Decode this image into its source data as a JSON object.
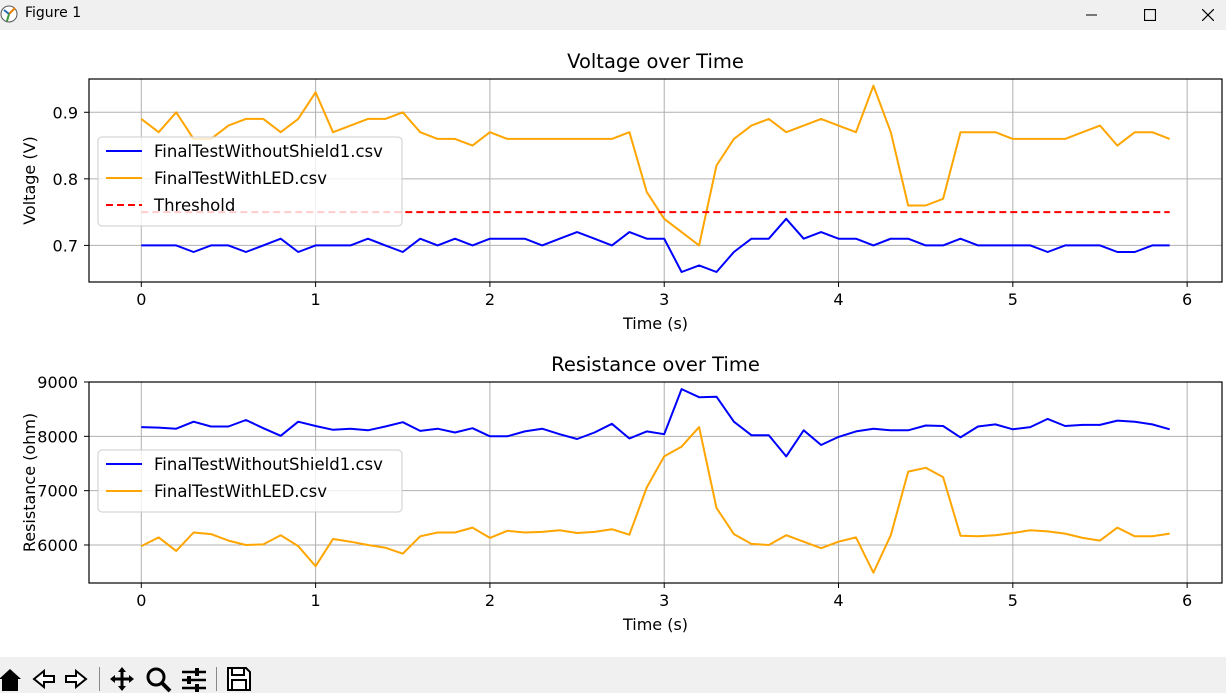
{
  "window": {
    "title": "Figure 1"
  },
  "toolbar": {
    "buttons": [
      {
        "icon": "home-icon"
      },
      {
        "icon": "back-icon"
      },
      {
        "icon": "forward-icon"
      },
      {
        "icon": "pan-icon"
      },
      {
        "icon": "zoom-icon"
      },
      {
        "icon": "configure-subplots-icon"
      },
      {
        "icon": "save-icon"
      }
    ]
  },
  "colors": {
    "series_blue": "#0000ff",
    "series_orange": "#ffa500",
    "threshold": "#ff0000",
    "grid": "#b0b0b0"
  },
  "chart_data": [
    {
      "type": "line",
      "title": "Voltage over Time",
      "xlabel": "Time (s)",
      "ylabel": "Voltage (V)",
      "xlim": [
        -0.3,
        6.2
      ],
      "ylim": [
        0.645,
        0.95
      ],
      "xticks": [
        0,
        1,
        2,
        3,
        4,
        5,
        6
      ],
      "yticks": [
        0.7,
        0.8,
        0.9
      ],
      "ytick_labels": [
        "0.7",
        "0.8",
        "0.9"
      ],
      "grid": true,
      "legend_position": "center-left",
      "x": [
        0,
        0.1,
        0.2,
        0.3,
        0.4,
        0.5,
        0.6,
        0.7,
        0.8,
        0.9,
        1,
        1.1,
        1.2,
        1.3,
        1.4,
        1.5,
        1.6,
        1.7,
        1.8,
        1.9,
        2,
        2.1,
        2.2,
        2.3,
        2.4,
        2.5,
        2.6,
        2.7,
        2.8,
        2.9,
        3,
        3.1,
        3.2,
        3.3,
        3.4,
        3.5,
        3.6,
        3.7,
        3.8,
        3.9,
        4,
        4.1,
        4.2,
        4.3,
        4.4,
        4.5,
        4.6,
        4.7,
        4.8,
        4.9,
        5,
        5.1,
        5.2,
        5.3,
        5.4,
        5.5,
        5.6,
        5.7,
        5.8,
        5.9
      ],
      "series": [
        {
          "name": "FinalTestWithoutShield1.csv",
          "color": "#0000ff",
          "style": "solid",
          "values": [
            0.7,
            0.7,
            0.7,
            0.69,
            0.7,
            0.7,
            0.69,
            0.7,
            0.71,
            0.69,
            0.7,
            0.7,
            0.7,
            0.71,
            0.7,
            0.69,
            0.71,
            0.7,
            0.71,
            0.7,
            0.71,
            0.71,
            0.71,
            0.7,
            0.71,
            0.72,
            0.71,
            0.7,
            0.72,
            0.71,
            0.71,
            0.66,
            0.67,
            0.66,
            0.69,
            0.71,
            0.71,
            0.74,
            0.71,
            0.72,
            0.71,
            0.71,
            0.7,
            0.71,
            0.71,
            0.7,
            0.7,
            0.71,
            0.7,
            0.7,
            0.7,
            0.7,
            0.69,
            0.7,
            0.7,
            0.7,
            0.69,
            0.69,
            0.7,
            0.7
          ]
        },
        {
          "name": "FinalTestWithLED.csv",
          "color": "#ffa500",
          "style": "solid",
          "values": [
            0.89,
            0.87,
            0.9,
            0.86,
            0.86,
            0.88,
            0.89,
            0.89,
            0.87,
            0.89,
            0.93,
            0.87,
            0.88,
            0.89,
            0.89,
            0.9,
            0.87,
            0.86,
            0.86,
            0.85,
            0.87,
            0.86,
            0.86,
            0.86,
            0.86,
            0.86,
            0.86,
            0.86,
            0.87,
            0.78,
            0.74,
            0.72,
            0.7,
            0.82,
            0.86,
            0.88,
            0.89,
            0.87,
            0.88,
            0.89,
            0.88,
            0.87,
            0.94,
            0.87,
            0.76,
            0.76,
            0.77,
            0.87,
            0.87,
            0.87,
            0.86,
            0.86,
            0.86,
            0.86,
            0.87,
            0.88,
            0.85,
            0.87,
            0.87,
            0.86
          ]
        },
        {
          "name": "Threshold",
          "color": "#ff0000",
          "style": "dashed",
          "values": [
            0.75,
            0.75,
            0.75,
            0.75,
            0.75,
            0.75,
            0.75,
            0.75,
            0.75,
            0.75,
            0.75,
            0.75,
            0.75,
            0.75,
            0.75,
            0.75,
            0.75,
            0.75,
            0.75,
            0.75,
            0.75,
            0.75,
            0.75,
            0.75,
            0.75,
            0.75,
            0.75,
            0.75,
            0.75,
            0.75,
            0.75,
            0.75,
            0.75,
            0.75,
            0.75,
            0.75,
            0.75,
            0.75,
            0.75,
            0.75,
            0.75,
            0.75,
            0.75,
            0.75,
            0.75,
            0.75,
            0.75,
            0.75,
            0.75,
            0.75,
            0.75,
            0.75,
            0.75,
            0.75,
            0.75,
            0.75,
            0.75,
            0.75,
            0.75,
            0.75
          ]
        }
      ]
    },
    {
      "type": "line",
      "title": "Resistance over Time",
      "xlabel": "Time (s)",
      "ylabel": "Resistance (ohm)",
      "xlim": [
        -0.3,
        6.2
      ],
      "ylim": [
        5300,
        9000
      ],
      "xticks": [
        0,
        1,
        2,
        3,
        4,
        5,
        6
      ],
      "yticks": [
        6000,
        7000,
        8000,
        9000
      ],
      "ytick_labels": [
        "6000",
        "7000",
        "8000",
        "9000"
      ],
      "grid": true,
      "legend_position": "center-left",
      "x": [
        0,
        0.1,
        0.2,
        0.3,
        0.4,
        0.5,
        0.6,
        0.7,
        0.8,
        0.9,
        1,
        1.1,
        1.2,
        1.3,
        1.4,
        1.5,
        1.6,
        1.7,
        1.8,
        1.9,
        2,
        2.1,
        2.2,
        2.3,
        2.4,
        2.5,
        2.6,
        2.7,
        2.8,
        2.9,
        3,
        3.1,
        3.2,
        3.3,
        3.4,
        3.5,
        3.6,
        3.7,
        3.8,
        3.9,
        4,
        4.1,
        4.2,
        4.3,
        4.4,
        4.5,
        4.6,
        4.7,
        4.8,
        4.9,
        5,
        5.1,
        5.2,
        5.3,
        5.4,
        5.5,
        5.6,
        5.7,
        5.8,
        5.9
      ],
      "series": [
        {
          "name": "FinalTestWithoutShield1.csv",
          "color": "#0000ff",
          "style": "solid",
          "values": [
            8170,
            8160,
            8140,
            8270,
            8180,
            8180,
            8300,
            8150,
            8010,
            8270,
            8190,
            8120,
            8140,
            8110,
            8180,
            8260,
            8100,
            8140,
            8070,
            8150,
            8000,
            8000,
            8090,
            8140,
            8040,
            7950,
            8070,
            8230,
            7960,
            8090,
            8040,
            8870,
            8720,
            8730,
            8270,
            8020,
            8020,
            7630,
            8110,
            7840,
            7990,
            8090,
            8140,
            8110,
            8110,
            8200,
            8190,
            7980,
            8180,
            8220,
            8130,
            8170,
            8320,
            8190,
            8210,
            8210,
            8290,
            8270,
            8220,
            8130
          ]
        },
        {
          "name": "FinalTestWithLED.csv",
          "color": "#ffa500",
          "style": "solid",
          "values": [
            5980,
            6140,
            5890,
            6230,
            6200,
            6080,
            6000,
            6010,
            6180,
            5980,
            5610,
            6110,
            6060,
            6000,
            5950,
            5840,
            6160,
            6230,
            6230,
            6320,
            6130,
            6260,
            6230,
            6240,
            6270,
            6220,
            6240,
            6290,
            6190,
            7060,
            7630,
            7810,
            8170,
            6680,
            6200,
            6020,
            6000,
            6180,
            6060,
            5940,
            6060,
            6140,
            5490,
            6180,
            7350,
            7420,
            7250,
            6170,
            6160,
            6180,
            6220,
            6270,
            6250,
            6210,
            6130,
            6080,
            6320,
            6160,
            6160,
            6210
          ]
        }
      ]
    }
  ]
}
